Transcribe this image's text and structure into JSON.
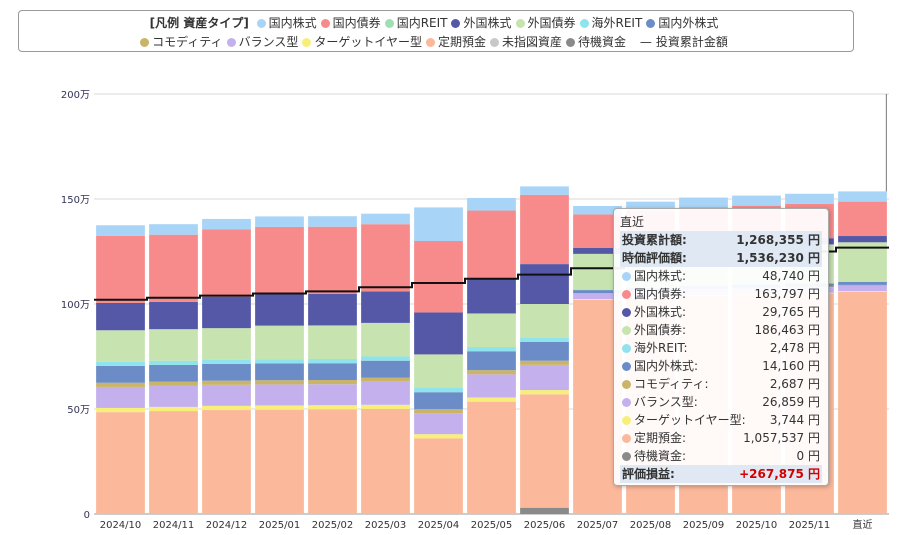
{
  "legend": {
    "title": "[凡例 資産タイプ]",
    "items": [
      {
        "label": "国内株式",
        "color": "#a8d4f7"
      },
      {
        "label": "国内債券",
        "color": "#f78a8a"
      },
      {
        "label": "国内REIT",
        "color": "#9ee0b3"
      },
      {
        "label": "外国株式",
        "color": "#5558a6"
      },
      {
        "label": "外国債券",
        "color": "#c7e3b0"
      },
      {
        "label": "海外REIT",
        "color": "#8fe3ec"
      },
      {
        "label": "国内外株式",
        "color": "#6b8cc7"
      },
      {
        "label": "コモディティ",
        "color": "#c9b46a"
      },
      {
        "label": "バランス型",
        "color": "#c3b0ec"
      },
      {
        "label": "ターゲットイヤー型",
        "color": "#f7ef7a"
      },
      {
        "label": "定期預金",
        "color": "#fbb89b"
      },
      {
        "label": "未指図資産",
        "color": "#c8c8c8"
      },
      {
        "label": "待機資金",
        "color": "#8a8a8a"
      }
    ],
    "line_label": "投資累計金額",
    "line_symbol": "—"
  },
  "chart_data": {
    "type": "bar",
    "stacked": true,
    "categories": [
      "2024/10",
      "2024/11",
      "2024/12",
      "2025/01",
      "2025/02",
      "2025/03",
      "2025/04",
      "2025/05",
      "2025/06",
      "2025/07",
      "2025/08",
      "2025/09",
      "2025/10",
      "2025/11",
      "直近"
    ],
    "y_ticks": [
      "0",
      "50万",
      "100万",
      "150万",
      "200万"
    ],
    "ylim": [
      0,
      2000000
    ],
    "series": [
      {
        "name": "待機資金",
        "color": "#8a8a8a",
        "values": [
          0,
          0,
          0,
          0,
          0,
          0,
          0,
          0,
          30000,
          0,
          0,
          0,
          0,
          0,
          0
        ]
      },
      {
        "name": "未指図資産",
        "color": "#c8c8c8",
        "values": [
          0,
          0,
          0,
          0,
          0,
          0,
          0,
          0,
          0,
          0,
          0,
          0,
          0,
          0,
          0
        ]
      },
      {
        "name": "定期預金",
        "color": "#fbb89b",
        "values": [
          485000,
          490000,
          495000,
          497000,
          498000,
          500000,
          360000,
          535000,
          540000,
          1020000,
          1030000,
          1040000,
          1045000,
          1050000,
          1057537
        ]
      },
      {
        "name": "ターゲットイヤー型",
        "color": "#f7ef7a",
        "values": [
          20000,
          20000,
          20000,
          20000,
          20000,
          20000,
          20000,
          20000,
          20000,
          3700,
          3700,
          3700,
          3700,
          3700,
          3744
        ]
      },
      {
        "name": "バランス型",
        "color": "#c3b0ec",
        "values": [
          100000,
          100000,
          100000,
          100000,
          100000,
          110000,
          100000,
          110000,
          120000,
          26000,
          26000,
          26000,
          26500,
          26800,
          26859
        ]
      },
      {
        "name": "コモディティ",
        "color": "#c9b46a",
        "values": [
          20000,
          20000,
          20000,
          20000,
          20000,
          20000,
          20000,
          20000,
          20000,
          2600,
          2600,
          2600,
          2650,
          2680,
          2687
        ]
      },
      {
        "name": "国内外株式",
        "color": "#6b8cc7",
        "values": [
          80000,
          80000,
          80000,
          80000,
          80000,
          80000,
          80000,
          90000,
          90000,
          14000,
          14000,
          14100,
          14100,
          14150,
          14160
        ]
      },
      {
        "name": "海外REIT",
        "color": "#8fe3ec",
        "values": [
          20000,
          20000,
          20000,
          20000,
          20000,
          20000,
          20000,
          20000,
          20000,
          2400,
          2400,
          2450,
          2450,
          2470,
          2478
        ]
      },
      {
        "name": "外国債券",
        "color": "#c7e3b0",
        "values": [
          150000,
          150000,
          150000,
          160000,
          160000,
          160000,
          160000,
          160000,
          160000,
          170000,
          175000,
          180000,
          182000,
          184000,
          186463
        ]
      },
      {
        "name": "国内REIT",
        "color": "#9ee0b3",
        "values": [
          0,
          0,
          0,
          0,
          0,
          0,
          0,
          0,
          0,
          0,
          0,
          0,
          0,
          0,
          0
        ]
      },
      {
        "name": "外国株式",
        "color": "#5558a6",
        "values": [
          130000,
          130000,
          150000,
          150000,
          150000,
          150000,
          200000,
          170000,
          190000,
          28000,
          28500,
          29000,
          29300,
          29600,
          29765
        ]
      },
      {
        "name": "国内債券",
        "color": "#f78a8a",
        "values": [
          320000,
          320000,
          320000,
          320000,
          320000,
          320000,
          340000,
          320000,
          330000,
          160000,
          161000,
          162000,
          162500,
          163000,
          163797
        ]
      },
      {
        "name": "国内株式",
        "color": "#a8d4f7",
        "values": [
          50000,
          50000,
          50000,
          50000,
          50000,
          50000,
          160000,
          60000,
          40000,
          40000,
          44000,
          47000,
          48000,
          48500,
          48740
        ]
      }
    ],
    "cumulative_investment": [
      1020000,
      1030000,
      1040000,
      1050000,
      1060000,
      1080000,
      1100000,
      1120000,
      1140000,
      1170000,
      1190000,
      1210000,
      1230000,
      1250000,
      1268355
    ]
  },
  "tooltip": {
    "header": "直近",
    "rows": [
      {
        "label": "投資累計額:",
        "value": "1,268,355 円",
        "highlight": true
      },
      {
        "label": "時価評価額:",
        "value": "1,536,230 円",
        "highlight": true
      },
      {
        "label": "国内株式:",
        "value": "48,740 円",
        "color": "#a8d4f7"
      },
      {
        "label": "国内債券:",
        "value": "163,797 円",
        "color": "#f78a8a"
      },
      {
        "label": "外国株式:",
        "value": "29,765 円",
        "color": "#5558a6"
      },
      {
        "label": "外国債券:",
        "value": "186,463 円",
        "color": "#c7e3b0"
      },
      {
        "label": "海外REIT:",
        "value": "2,478 円",
        "color": "#8fe3ec"
      },
      {
        "label": "国内外株式:",
        "value": "14,160 円",
        "color": "#6b8cc7"
      },
      {
        "label": "コモディティ:",
        "value": "2,687 円",
        "color": "#c9b46a"
      },
      {
        "label": "バランス型:",
        "value": "26,859 円",
        "color": "#c3b0ec"
      },
      {
        "label": "ターゲットイヤー型:",
        "value": "3,744 円",
        "color": "#f7ef7a"
      },
      {
        "label": "定期預金:",
        "value": "1,057,537 円",
        "color": "#fbb89b"
      },
      {
        "label": "待機資金:",
        "value": "0 円",
        "color": "#8a8a8a"
      },
      {
        "label": "評価損益:",
        "value": "+267,875 円",
        "highlight": true,
        "gain": true
      }
    ]
  }
}
